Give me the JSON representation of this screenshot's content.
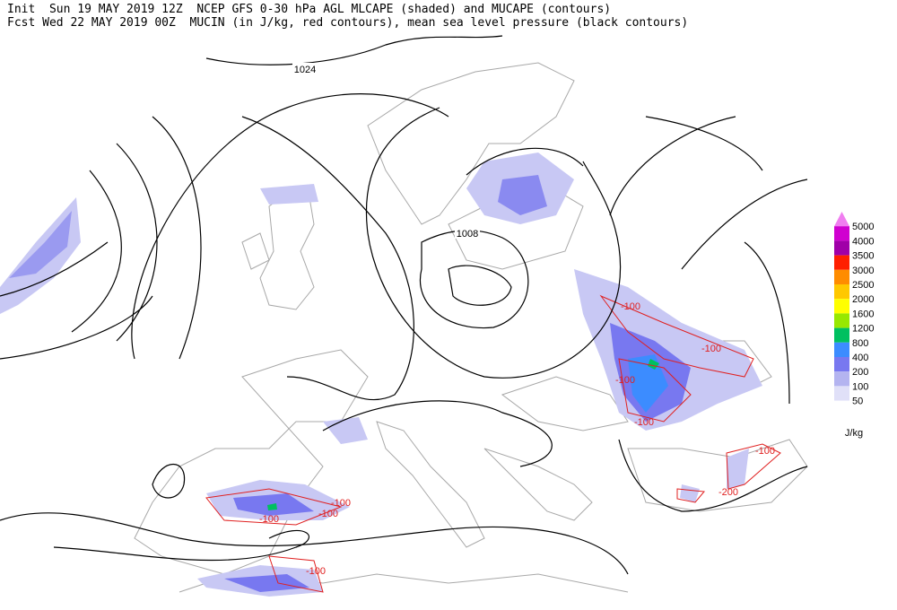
{
  "header": {
    "line1": "Init  Sun 19 MAY 2019 12Z  NCEP GFS 0-30 hPa AGL MLCAPE (shaded) and MUCAPE (contours)",
    "line2": "Fcst Wed 22 MAY 2019 00Z  MUCIN (in J/kg, red contours), mean sea level pressure (black contours)"
  },
  "isobar_labels": [
    "1024",
    "1008"
  ],
  "cin_labels": [
    "-100",
    "-100",
    "-100",
    "-100",
    "-100",
    "-100",
    "-100",
    "-100",
    "-100",
    "-200"
  ],
  "legend": {
    "unit": "J/kg",
    "levels": [
      {
        "label": "5000",
        "color": "#f07ef0"
      },
      {
        "label": "4000",
        "color": "#d000d0"
      },
      {
        "label": "3500",
        "color": "#a000a8"
      },
      {
        "label": "3000",
        "color": "#ff2000"
      },
      {
        "label": "2500",
        "color": "#ff8c00"
      },
      {
        "label": "2000",
        "color": "#ffc800"
      },
      {
        "label": "1600",
        "color": "#ffff00"
      },
      {
        "label": "1200",
        "color": "#98e800"
      },
      {
        "label": "800",
        "color": "#00c060"
      },
      {
        "label": "400",
        "color": "#3c8cff"
      },
      {
        "label": "200",
        "color": "#7878f0"
      },
      {
        "label": "100",
        "color": "#b4b4f0"
      },
      {
        "label": "50",
        "color": "#e0e0f8"
      }
    ]
  }
}
